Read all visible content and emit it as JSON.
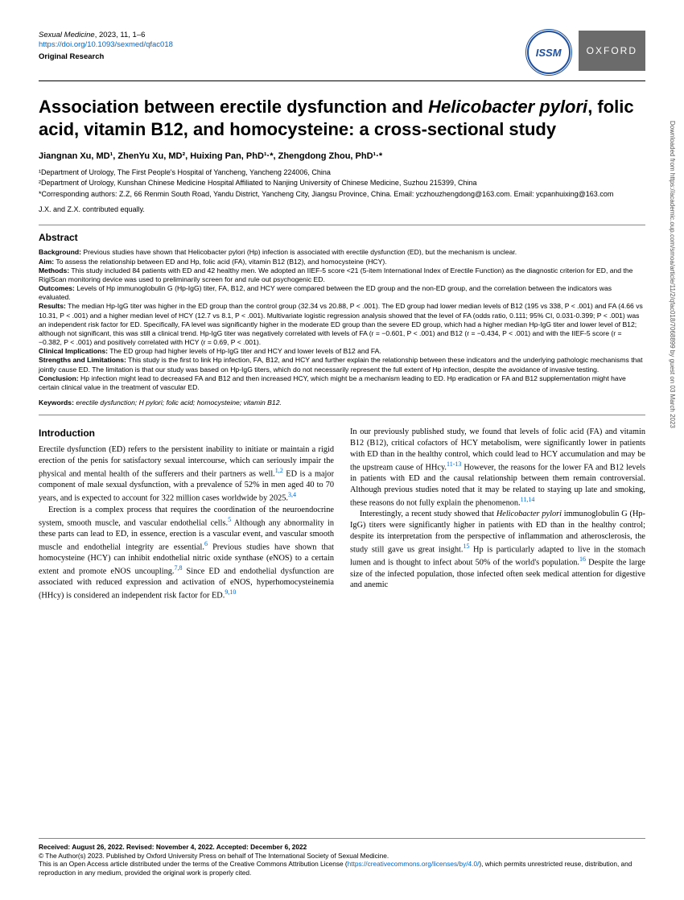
{
  "header": {
    "journal": "Sexual Medicine",
    "citation": ", 2023, 11, 1–6",
    "doi": "https://doi.org/10.1093/sexmed/qfac018",
    "category": "Original Research",
    "issm": "ISSM",
    "oxford": "OXFORD"
  },
  "title": {
    "pre": "Association between erectile dysfunction and ",
    "italic": "Helicobacter pylori",
    "post": ", folic acid, vitamin B12, and homocysteine: a cross-sectional study"
  },
  "authors": "Jiangnan Xu, MD¹, ZhenYu Xu, MD², Huixing Pan, PhD¹·*, Zhengdong Zhou, PhD¹·*",
  "affil1": "¹Department of Urology, The First People's Hospital of Yancheng, Yancheng 224006, China",
  "affil2": "²Department of Urology, Kunshan Chinese Medicine Hospital Affiliated to Nanjing University of Chinese Medicine, Suzhou 215399, China",
  "corresp": "*Corresponding authors: Z.Z, 66 Renmin South Road, Yandu District, Yancheng City, Jiangsu Province, China. Email: yczhouzhengdong@163.com. Email: ycpanhuixing@163.com",
  "contributed": "J.X. and Z.X. contributed equally.",
  "abstract": {
    "heading": "Abstract",
    "background_label": "Background:",
    "background": " Previous studies have shown that Helicobacter pylori (Hp) infection is associated with erectile dysfunction (ED), but the mechanism is unclear.",
    "aim_label": "Aim:",
    "aim": " To assess the relationship between ED and Hp, folic acid (FA), vitamin B12 (B12), and homocysteine (HCY).",
    "methods_label": "Methods:",
    "methods": " This study included 84 patients with ED and 42 healthy men. We adopted an IIEF-5 score <21 (5-item International Index of Erectile Function) as the diagnostic criterion for ED, and the RigiScan monitoring device was used to preliminarily screen for and rule out psychogenic ED.",
    "outcomes_label": "Outcomes:",
    "outcomes": " Levels of Hp immunoglobulin G (Hp-IgG) titer, FA, B12, and HCY were compared between the ED group and the non-ED group, and the correlation between the indicators was evaluated.",
    "results_label": "Results:",
    "results": " The median Hp-IgG titer was higher in the ED group than the control group (32.34 vs 20.88, P < .001). The ED group had lower median levels of B12 (195 vs 338, P < .001) and FA (4.66 vs 10.31, P < .001) and a higher median level of HCY (12.7 vs 8.1, P < .001). Multivariate logistic regression analysis showed that the level of FA (odds ratio, 0.111; 95% CI, 0.031-0.399; P < .001) was an independent risk factor for ED. Specifically, FA level was significantly higher in the moderate ED group than the severe ED group, which had a higher median Hp-IgG titer and lower level of B12; although not significant, this was still a clinical trend. Hp-IgG titer was negatively correlated with levels of FA (r = −0.601, P < .001) and B12 (r = −0.434, P < .001) and with the IIEF-5 score (r = −0.382, P < .001) and positively correlated with HCY (r = 0.69, P < .001).",
    "clinimpl_label": "Clinical Implications:",
    "clinimpl": " The ED group had higher levels of Hp-IgG titer and HCY and lower levels of B12 and FA.",
    "strengths_label": "Strengths and Limitations:",
    "strengths": " This study is the first to link Hp infection, FA, B12, and HCY and further explain the relationship between these indicators and the underlying pathologic mechanisms that jointly cause ED. The limitation is that our study was based on Hp-IgG titers, which do not necessarily represent the full extent of Hp infection, despite the avoidance of invasive testing.",
    "conclusion_label": "Conclusion:",
    "conclusion": " Hp infection might lead to decreased FA and B12 and then increased HCY, which might be a mechanism leading to ED. Hp eradication or FA and B12 supplementation might have certain clinical value in the treatment of vascular ED."
  },
  "keywords": {
    "label": "Keywords:",
    "text": "  erectile dysfunction; H pylori; folic acid; homocysteine; vitamin B12."
  },
  "intro": {
    "heading": "Introduction",
    "p1a": "Erectile dysfunction (ED) refers to the persistent inability to initiate or maintain a rigid erection of the penis for satisfactory sexual intercourse, which can seriously impair the physical and mental health of the sufferers and their partners as well.",
    "p1ref1": "1,2",
    "p1b": " ED is a major component of male sexual dysfunction, with a prevalence of 52% in men aged 40 to 70 years, and is expected to account for 322 million cases worldwide by 2025.",
    "p1ref2": "3,4",
    "p2a": "Erection is a complex process that requires the coordination of the neuroendocrine system, smooth muscle, and vascular endothelial cells.",
    "p2ref1": "5",
    "p2b": " Although any abnormality in these parts can lead to ED, in essence, erection is a vascular event, and vascular smooth muscle and endothelial integrity are essential.",
    "p2ref2": "6",
    "p2c": " Previous studies have shown that homocysteine (HCY) can inhibit endothelial nitric oxide synthase (eNOS) to a certain extent and promote eNOS uncoupling.",
    "p2ref3": "7,8",
    "p2d": " Since ED and endothelial dysfunction are associated with reduced expression and activation of eNOS, hyperhomocysteinemia (HHcy) is considered an independent risk factor for ED.",
    "p2ref4": "9,10",
    "p3a": "In our previously published study, we found that levels of folic acid (FA) and vitamin B12 (B12), critical cofactors of HCY metabolism, were significantly lower in patients with ED than in the healthy control, which could lead to HCY accumulation and may be the upstream cause of HHcy.",
    "p3ref1": "11-13",
    "p3b": " However, the reasons for the lower FA and B12 levels in patients with ED and the causal relationship between them remain controversial. Although previous studies noted that it may be related to staying up late and smoking, these reasons do not fully explain the phenomenon.",
    "p3ref2": "11,14",
    "p4a": "Interestingly, a recent study showed that ",
    "p4ital": "Helicobacter pylori",
    "p4b": " immunoglobulin G (Hp-IgG) titers were significantly higher in patients with ED than in the healthy control; despite its interpretation from the perspective of inflammation and atherosclerosis, the study still gave us great insight.",
    "p4ref1": "15",
    "p4c": " Hp is particularly adapted to live in the stomach lumen and is thought to infect about 50% of the world's population.",
    "p4ref2": "16",
    "p4d": " Despite the large size of the infected population, those infected often seek medical attention for digestive and anemic"
  },
  "footer": {
    "received": "Received: August 26, 2022. Revised: November 4, 2022. Accepted: December 6, 2022",
    "copyright": "© The Author(s) 2023. Published by Oxford University Press on behalf of The International Society of Sexual Medicine.",
    "license1": "This is an Open Access article distributed under the terms of the Creative Commons Attribution License (",
    "license_link": "https://creativecommons.org/licenses/by/4.0/",
    "license2": "), which permits unrestricted reuse, distribution, and reproduction in any medium, provided the original work is properly cited."
  },
  "sidebar": "Downloaded from https://academic.oup.com/smoa/article/11/2/qfac018/7068899 by guest on 03 March 2023"
}
